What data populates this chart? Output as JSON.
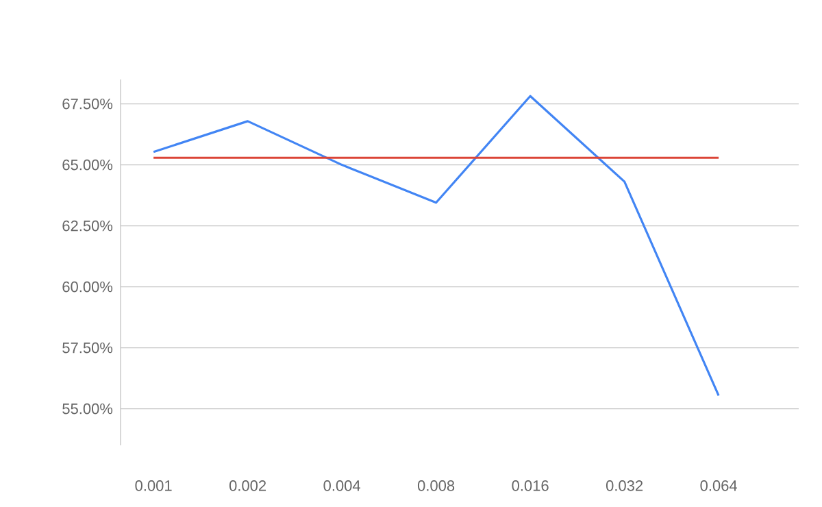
{
  "chart_data": {
    "type": "line",
    "categories": [
      "0.001",
      "0.002",
      "0.004",
      "0.008",
      "0.016",
      "0.032",
      "0.064"
    ],
    "series": [
      {
        "color": "#4285f4",
        "values": [
          65.53,
          66.79,
          65.0,
          63.45,
          67.82,
          64.31,
          55.54
        ]
      },
      {
        "color": "#db4437",
        "values": [
          65.29,
          65.29,
          65.29,
          65.29,
          65.29,
          65.29,
          65.29
        ]
      }
    ],
    "yticks": [
      {
        "value": 55,
        "label": "55.00%"
      },
      {
        "value": 57.5,
        "label": "57.50%"
      },
      {
        "value": 60,
        "label": "60.00%"
      },
      {
        "value": 62.5,
        "label": "62.50%"
      },
      {
        "value": 65,
        "label": "65.00%"
      },
      {
        "value": 67.5,
        "label": "67.50%"
      }
    ],
    "ylim": [
      53.5,
      68.5
    ],
    "grid": "y",
    "marker": "none",
    "line_style": "solid"
  }
}
